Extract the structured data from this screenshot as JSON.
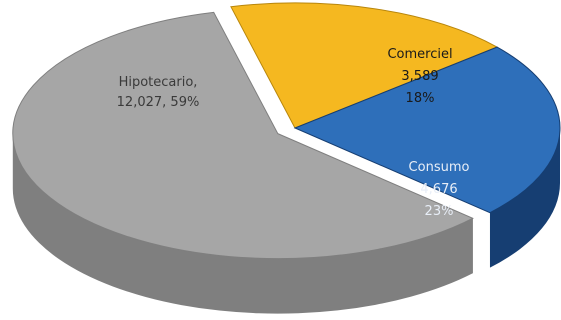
{
  "chart_data": {
    "type": "pie",
    "title": "",
    "slices": [
      {
        "name": "Hipotecario",
        "value": 12027,
        "value_label": "12,027",
        "percent_label": "59%",
        "color": "#a6a6a6",
        "side_color": "#7f7f7f",
        "label_color": "#3a3a3a",
        "exploded": true
      },
      {
        "name": "Comerciel",
        "value": 3589,
        "value_label": "3,589",
        "percent_label": "18%",
        "color": "#f5b820",
        "side_color": "#b8860b",
        "label_color": "#1a1a1a",
        "exploded": false
      },
      {
        "name": "Consumo",
        "value": 4676,
        "value_label": "4,676",
        "percent_label": "23%",
        "color": "#2e6fba",
        "side_color": "#163e72",
        "label_color": "#e8eef7",
        "exploded": false
      }
    ],
    "legend": "none",
    "style": "3d-exploded"
  }
}
